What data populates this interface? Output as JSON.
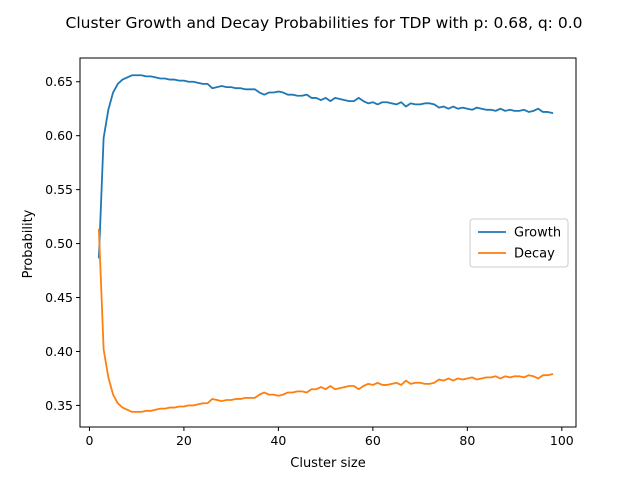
{
  "chart_data": {
    "type": "line",
    "title": "Cluster Growth and Decay Probabilities for TDP with p: 0.68, q: 0.0",
    "xlabel": "Cluster size",
    "ylabel": "Probability",
    "xlim": [
      -2,
      103
    ],
    "ylim": [
      0.33,
      0.672
    ],
    "xticks": [
      0,
      20,
      40,
      60,
      80,
      100
    ],
    "xtick_labels": [
      "0",
      "20",
      "40",
      "60",
      "80",
      "100"
    ],
    "yticks": [
      0.35,
      0.4,
      0.45,
      0.5,
      0.55,
      0.6,
      0.65
    ],
    "ytick_labels": [
      "0.35",
      "0.40",
      "0.45",
      "0.50",
      "0.55",
      "0.60",
      "0.65"
    ],
    "grid": false,
    "legend_position": "center-right",
    "x": [
      2,
      3,
      4,
      5,
      6,
      7,
      8,
      9,
      10,
      11,
      12,
      13,
      14,
      15,
      16,
      17,
      18,
      19,
      20,
      21,
      22,
      23,
      24,
      25,
      26,
      27,
      28,
      29,
      30,
      31,
      32,
      33,
      34,
      35,
      36,
      37,
      38,
      39,
      40,
      41,
      42,
      43,
      44,
      45,
      46,
      47,
      48,
      49,
      50,
      51,
      52,
      53,
      54,
      55,
      56,
      57,
      58,
      59,
      60,
      61,
      62,
      63,
      64,
      65,
      66,
      67,
      68,
      69,
      70,
      71,
      72,
      73,
      74,
      75,
      76,
      77,
      78,
      79,
      80,
      81,
      82,
      83,
      84,
      85,
      86,
      87,
      88,
      89,
      90,
      91,
      92,
      93,
      94,
      95,
      96,
      97,
      98
    ],
    "series": [
      {
        "name": "Growth",
        "color": "#1f77b4",
        "values": [
          0.487,
          0.598,
          0.624,
          0.64,
          0.648,
          0.652,
          0.654,
          0.656,
          0.656,
          0.656,
          0.655,
          0.655,
          0.654,
          0.653,
          0.653,
          0.652,
          0.652,
          0.651,
          0.651,
          0.65,
          0.65,
          0.649,
          0.648,
          0.648,
          0.644,
          0.645,
          0.646,
          0.645,
          0.645,
          0.644,
          0.644,
          0.643,
          0.643,
          0.643,
          0.64,
          0.638,
          0.64,
          0.64,
          0.641,
          0.64,
          0.638,
          0.638,
          0.637,
          0.637,
          0.638,
          0.635,
          0.635,
          0.633,
          0.635,
          0.632,
          0.635,
          0.634,
          0.633,
          0.632,
          0.632,
          0.635,
          0.632,
          0.63,
          0.631,
          0.629,
          0.631,
          0.631,
          0.63,
          0.629,
          0.631,
          0.627,
          0.63,
          0.629,
          0.629,
          0.63,
          0.63,
          0.629,
          0.626,
          0.627,
          0.625,
          0.627,
          0.625,
          0.626,
          0.625,
          0.624,
          0.626,
          0.625,
          0.624,
          0.624,
          0.623,
          0.625,
          0.623,
          0.624,
          0.623,
          0.623,
          0.624,
          0.622,
          0.623,
          0.625,
          0.622,
          0.622,
          0.621
        ]
      },
      {
        "name": "Decay",
        "color": "#ff7f0e",
        "values": [
          0.513,
          0.402,
          0.376,
          0.36,
          0.352,
          0.348,
          0.346,
          0.344,
          0.344,
          0.344,
          0.345,
          0.345,
          0.346,
          0.347,
          0.347,
          0.348,
          0.348,
          0.349,
          0.349,
          0.35,
          0.35,
          0.351,
          0.352,
          0.352,
          0.356,
          0.355,
          0.354,
          0.355,
          0.355,
          0.356,
          0.356,
          0.357,
          0.357,
          0.357,
          0.36,
          0.362,
          0.36,
          0.36,
          0.359,
          0.36,
          0.362,
          0.362,
          0.363,
          0.363,
          0.362,
          0.365,
          0.365,
          0.367,
          0.365,
          0.368,
          0.365,
          0.366,
          0.367,
          0.368,
          0.368,
          0.365,
          0.368,
          0.37,
          0.369,
          0.371,
          0.369,
          0.369,
          0.37,
          0.371,
          0.369,
          0.373,
          0.37,
          0.371,
          0.371,
          0.37,
          0.37,
          0.371,
          0.374,
          0.373,
          0.375,
          0.373,
          0.375,
          0.374,
          0.375,
          0.376,
          0.374,
          0.375,
          0.376,
          0.376,
          0.377,
          0.375,
          0.377,
          0.376,
          0.377,
          0.377,
          0.376,
          0.378,
          0.377,
          0.375,
          0.378,
          0.378,
          0.379
        ]
      }
    ]
  }
}
